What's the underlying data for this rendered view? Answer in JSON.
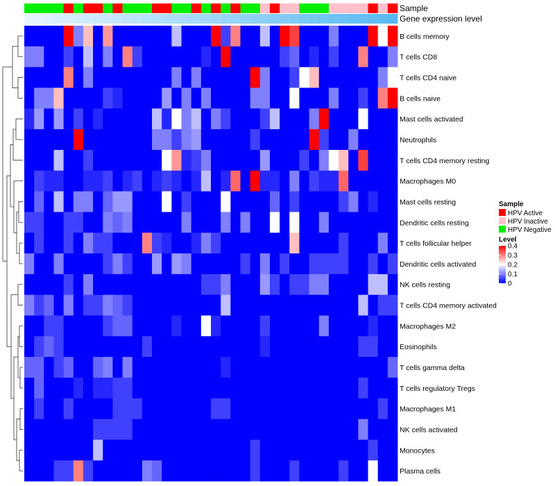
{
  "chart_data": {
    "type": "heatmap",
    "title": "",
    "annotations": [
      {
        "name": "Sample",
        "kind": "categorical"
      },
      {
        "name": "Gene expression level",
        "kind": "continuous"
      }
    ],
    "rows": [
      "B cells memory",
      "T cells CD8",
      "T cells CD4 naive",
      "B cells naive",
      "Mast cells activated",
      "Neutrophils",
      "T cells CD4 memory resting",
      "Macrophages M0",
      "Mast cells resting",
      "Dendritic cells resting",
      "T cells follicular helper",
      "Dendritic cells activated",
      "NK cells resting",
      "T cells CD4 memory activated",
      "Macrophages M2",
      "Eosinophils",
      "T cells gamma delta",
      "T cells regulatory  Tregs",
      "Macrophages M1",
      "NK cells activated",
      "Monocytes",
      "Plasma cells"
    ],
    "sample_groups": [
      "N",
      "N",
      "N",
      "N",
      "A",
      "N",
      "A",
      "A",
      "N",
      "A",
      "N",
      "N",
      "N",
      "A",
      "A",
      "N",
      "N",
      "A",
      "N",
      "A",
      "N",
      "A",
      "N",
      "N",
      "I",
      "A",
      "I",
      "I",
      "N",
      "N",
      "N",
      "I",
      "I",
      "I",
      "I",
      "A",
      "I",
      "A"
    ],
    "expression_level": [
      0.0,
      0.03,
      0.05,
      0.08,
      0.1,
      0.13,
      0.16,
      0.18,
      0.21,
      0.24,
      0.26,
      0.29,
      0.32,
      0.34,
      0.37,
      0.39,
      0.42,
      0.45,
      0.47,
      0.5,
      0.53,
      0.55,
      0.58,
      0.61,
      0.63,
      0.66,
      0.68,
      0.71,
      0.74,
      0.76,
      0.79,
      0.82,
      0.84,
      0.87,
      0.89,
      0.92,
      0.95,
      1.0
    ],
    "values": [
      [
        0,
        0,
        0,
        0,
        0.4,
        0.1,
        0.25,
        0,
        0.28,
        0,
        0,
        0,
        0,
        0,
        0,
        0.15,
        0,
        0,
        0,
        0.4,
        0.05,
        0.3,
        0,
        0,
        0.15,
        0,
        0.4,
        0.35,
        0,
        0,
        0,
        0.1,
        0,
        0,
        0,
        0.4,
        0.2,
        0.4
      ],
      [
        0.1,
        0.1,
        0,
        0,
        0.05,
        0,
        0.15,
        0,
        0.1,
        0,
        0.3,
        0.05,
        0,
        0,
        0,
        0,
        0,
        0,
        0.03,
        0,
        0.4,
        0,
        0,
        0,
        0,
        0,
        0.05,
        0.08,
        0,
        0.03,
        0,
        0.05,
        0,
        0,
        0.3,
        0,
        0,
        0.1
      ],
      [
        0,
        0,
        0,
        0,
        0.3,
        0,
        0.1,
        0,
        0,
        0,
        0,
        0,
        0,
        0,
        0,
        0.1,
        0,
        0.1,
        0,
        0,
        0,
        0,
        0,
        0.4,
        0.1,
        0,
        0,
        0.05,
        0.2,
        0.25,
        0,
        0,
        0,
        0,
        0,
        0,
        0.1,
        0.2
      ],
      [
        0,
        0.1,
        0.1,
        0.25,
        0,
        0,
        0,
        0,
        0.05,
        0.03,
        0,
        0,
        0,
        0,
        0.12,
        0,
        0.1,
        0,
        0.1,
        0,
        0,
        0,
        0,
        0.1,
        0.1,
        0,
        0,
        0.2,
        0,
        0,
        0,
        0.1,
        0,
        0,
        0.05,
        0,
        0.3,
        0.4
      ],
      [
        0.03,
        0.12,
        0,
        0.12,
        0,
        0.05,
        0,
        0.03,
        0,
        0,
        0,
        0,
        0,
        0.15,
        0.03,
        0.2,
        0.1,
        0.15,
        0,
        0.1,
        0.05,
        0,
        0,
        0,
        0.05,
        0.15,
        0,
        0,
        0,
        0.1,
        0.4,
        0,
        0,
        0,
        0.2,
        0,
        0,
        0
      ],
      [
        0,
        0,
        0,
        0,
        0,
        0.4,
        0,
        0,
        0,
        0,
        0,
        0,
        0,
        0.1,
        0.1,
        0.05,
        0.1,
        0.12,
        0,
        0,
        0,
        0,
        0,
        0.05,
        0,
        0,
        0,
        0,
        0,
        0.4,
        0.05,
        0,
        0,
        0.1,
        0,
        0,
        0,
        0
      ],
      [
        0,
        0,
        0,
        0.15,
        0,
        0,
        0.05,
        0,
        0,
        0,
        0,
        0,
        0,
        0,
        0.2,
        0.28,
        0.03,
        0.05,
        0.1,
        0,
        0,
        0,
        0,
        0,
        0.12,
        0,
        0,
        0,
        0.05,
        0,
        0.1,
        0.2,
        0.25,
        0,
        0.35,
        0,
        0,
        0
      ],
      [
        0,
        0.05,
        0.03,
        0.03,
        0,
        0,
        0.03,
        0.03,
        0.05,
        0,
        0.03,
        0.05,
        0,
        0.03,
        0.05,
        0.03,
        0,
        0.03,
        0.15,
        0,
        0.03,
        0.32,
        0,
        0.4,
        0.03,
        0.03,
        0,
        0.1,
        0,
        0.05,
        0.03,
        0.03,
        0.32,
        0,
        0,
        0,
        0,
        0
      ],
      [
        0,
        0.08,
        0,
        0.15,
        0,
        0.1,
        0.1,
        0,
        0.08,
        0.12,
        0.12,
        0,
        0,
        0,
        0.2,
        0,
        0.05,
        0,
        0,
        0,
        0.2,
        0,
        0,
        0,
        0,
        0.08,
        0,
        0.05,
        0,
        0,
        0,
        0,
        0.05,
        0.1,
        0,
        0.03,
        0,
        0
      ],
      [
        0.05,
        0.05,
        0,
        0,
        0.05,
        0.05,
        0,
        0,
        0.1,
        0.08,
        0.1,
        0,
        0,
        0,
        0,
        0,
        0.1,
        0,
        0,
        0,
        0.1,
        0,
        0.1,
        0,
        0,
        0.2,
        0,
        0.2,
        0,
        0,
        0.1,
        0,
        0,
        0,
        0,
        0,
        0,
        0
      ],
      [
        0,
        0.05,
        0,
        0,
        0.05,
        0,
        0.1,
        0.05,
        0.05,
        0,
        0,
        0,
        0.3,
        0.05,
        0.03,
        0,
        0,
        0.03,
        0.1,
        0.05,
        0,
        0,
        0,
        0,
        0,
        0,
        0,
        0.25,
        0,
        0,
        0,
        0,
        0.05,
        0,
        0,
        0,
        0.1,
        0
      ],
      [
        0.1,
        0,
        0,
        0.1,
        0,
        0,
        0,
        0,
        0.05,
        0.1,
        0.05,
        0,
        0,
        0.12,
        0,
        0.12,
        0.1,
        0,
        0,
        0,
        0,
        0,
        0.05,
        0,
        0.1,
        0,
        0.05,
        0,
        0,
        0.05,
        0.05,
        0.05,
        0.05,
        0,
        0,
        0.05,
        0,
        0.05
      ],
      [
        0,
        0,
        0,
        0,
        0.05,
        0,
        0.1,
        0,
        0,
        0,
        0,
        0,
        0,
        0,
        0,
        0,
        0,
        0,
        0.05,
        0.05,
        0.1,
        0,
        0,
        0,
        0.12,
        0.05,
        0,
        0.05,
        0.05,
        0.1,
        0.1,
        0,
        0,
        0,
        0,
        0.15,
        0.15,
        0
      ],
      [
        0.1,
        0.05,
        0.08,
        0,
        0.1,
        0,
        0.05,
        0.05,
        0.1,
        0.08,
        0.05,
        0,
        0,
        0,
        0,
        0,
        0,
        0,
        0,
        0,
        0.15,
        0,
        0,
        0,
        0,
        0,
        0,
        0,
        0,
        0,
        0,
        0,
        0,
        0,
        0.15,
        0,
        0.05,
        0.05
      ],
      [
        0,
        0,
        0.05,
        0.05,
        0,
        0,
        0,
        0,
        0.05,
        0.08,
        0.08,
        0,
        0,
        0,
        0,
        0.03,
        0,
        0,
        0.2,
        0.03,
        0,
        0,
        0,
        0,
        0.05,
        0,
        0,
        0,
        0,
        0,
        0.1,
        0,
        0,
        0,
        0,
        0.03,
        0,
        0
      ],
      [
        0,
        0.05,
        0.08,
        0.05,
        0,
        0,
        0,
        0,
        0,
        0,
        0,
        0,
        0.05,
        0,
        0,
        0,
        0,
        0,
        0,
        0,
        0,
        0,
        0,
        0,
        0.03,
        0,
        0,
        0,
        0,
        0,
        0,
        0,
        0,
        0,
        0.05,
        0.05,
        0,
        0
      ],
      [
        0.08,
        0.08,
        0,
        0.05,
        0.08,
        0,
        0,
        0.08,
        0.1,
        0,
        0.1,
        0,
        0,
        0,
        0,
        0,
        0,
        0,
        0,
        0,
        0.03,
        0,
        0,
        0,
        0,
        0,
        0,
        0,
        0,
        0,
        0,
        0,
        0,
        0,
        0,
        0,
        0,
        0.08
      ],
      [
        0,
        0.08,
        0,
        0,
        0,
        0.03,
        0,
        0.03,
        0.03,
        0.05,
        0.05,
        0,
        0,
        0,
        0,
        0,
        0,
        0,
        0,
        0,
        0,
        0,
        0,
        0,
        0,
        0,
        0,
        0,
        0,
        0,
        0,
        0,
        0,
        0,
        0.05,
        0,
        0,
        0
      ],
      [
        0,
        0.05,
        0,
        0,
        0.05,
        0,
        0,
        0,
        0,
        0.05,
        0.05,
        0.05,
        0,
        0,
        0,
        0,
        0,
        0,
        0,
        0.05,
        0.05,
        0,
        0,
        0,
        0,
        0,
        0,
        0,
        0,
        0,
        0,
        0,
        0,
        0,
        0,
        0,
        0.05,
        0
      ],
      [
        0,
        0,
        0,
        0,
        0,
        0,
        0,
        0.05,
        0.05,
        0.05,
        0.05,
        0,
        0,
        0,
        0,
        0,
        0,
        0,
        0,
        0,
        0,
        0,
        0,
        0,
        0,
        0,
        0,
        0,
        0,
        0,
        0,
        0,
        0,
        0,
        0.1,
        0,
        0,
        0
      ],
      [
        0,
        0,
        0,
        0,
        0,
        0,
        0,
        0.15,
        0,
        0,
        0,
        0,
        0,
        0,
        0,
        0,
        0,
        0,
        0,
        0,
        0,
        0,
        0,
        0.05,
        0,
        0,
        0,
        0,
        0,
        0,
        0,
        0,
        0,
        0,
        0,
        0.05,
        0,
        0
      ],
      [
        0,
        0,
        0,
        0.05,
        0.05,
        0.3,
        0.05,
        0,
        0,
        0,
        0,
        0,
        0.1,
        0.08,
        0,
        0,
        0,
        0,
        0,
        0,
        0,
        0,
        0,
        0.05,
        0,
        0,
        0,
        0.05,
        0,
        0,
        0,
        0,
        0.05,
        0,
        0,
        0.2,
        0,
        0
      ]
    ],
    "color_scale": {
      "min": 0,
      "max": 0.4,
      "low": "#0000FF",
      "mid": "#FFFFFF",
      "high": "#FF0000",
      "mid_value": 0.2
    },
    "legend": {
      "sample_title": "Sample",
      "sample_entries": [
        {
          "label": "HPV Active",
          "color": "#FF0000"
        },
        {
          "label": "HPV Inactive",
          "color": "#FFC0CB"
        },
        {
          "label": "HPV Negative",
          "color": "#00EE00"
        }
      ],
      "level_title": "Level",
      "level_ticks": [
        "0.4",
        "0.3",
        "0.2",
        "0.1",
        "0"
      ],
      "level_tick_values": [
        0.4,
        0.3,
        0.2,
        0.1,
        0
      ]
    },
    "expression_colors": {
      "low": "#E6F4FF",
      "high": "#55B8F0"
    }
  }
}
